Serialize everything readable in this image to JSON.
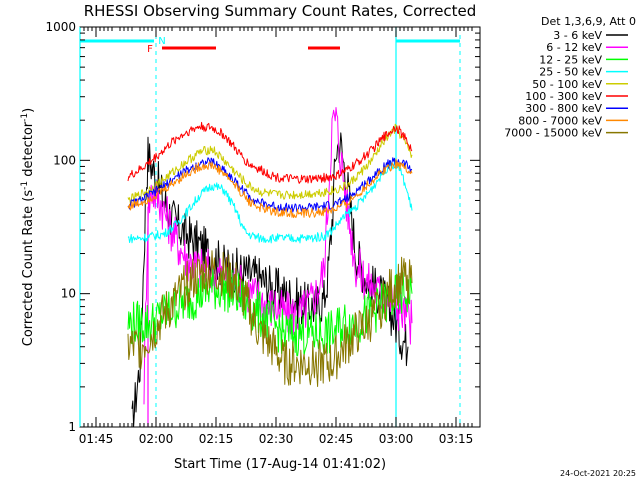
{
  "chart_data": {
    "type": "line",
    "title": "RHESSI Observing Summary Count Rates, Corrected",
    "xlabel": "Start Time (17-Aug-14 01:41:02)",
    "ylabel_main": "Corrected Count Rate (s",
    "ylabel_sup1": "-1",
    "ylabel_mid": " detector",
    "ylabel_sup2": "-1",
    "ylabel_end": ")",
    "yscale": "log",
    "ylim": [
      1,
      1000
    ],
    "xlim_minutes": [
      101,
      201
    ],
    "x_ticks": [
      {
        "m": 105,
        "label": "01:45"
      },
      {
        "m": 120,
        "label": "02:00"
      },
      {
        "m": 135,
        "label": "02:15"
      },
      {
        "m": 150,
        "label": "02:30"
      },
      {
        "m": 165,
        "label": "02:45"
      },
      {
        "m": 180,
        "label": "03:00"
      },
      {
        "m": 195,
        "label": "03:15"
      }
    ],
    "y_ticks": [
      {
        "v": 1,
        "label": "1"
      },
      {
        "v": 10,
        "label": "10"
      },
      {
        "v": 100,
        "label": "100"
      },
      {
        "v": 1000,
        "label": "1000"
      }
    ],
    "legend_header": "Det 1,3,6,9, Att 0",
    "legend_position": "top-right outside",
    "series": [
      {
        "name": "3 - 6 keV",
        "color": "#000000",
        "x": [
          114,
          116,
          117,
          117.5,
          118,
          119,
          120,
          121,
          123,
          125,
          128,
          131,
          134,
          137,
          140,
          143,
          146,
          149,
          152,
          155,
          158,
          160,
          162,
          163,
          164,
          165,
          166,
          168,
          170,
          173,
          176,
          178,
          179,
          180,
          181,
          183
        ],
        "y": [
          1,
          3,
          20,
          60,
          110,
          90,
          75,
          60,
          42,
          33,
          27,
          23,
          19,
          16,
          15,
          14,
          13,
          11,
          10,
          9,
          8,
          8,
          9,
          14,
          35,
          120,
          140,
          60,
          20,
          12,
          10,
          8,
          7,
          6,
          5,
          4
        ]
      },
      {
        "name": "6 - 12 keV",
        "color": "#ff00ff",
        "x": [
          117,
          118,
          119,
          120,
          121,
          122,
          124,
          126,
          128,
          130,
          132,
          134,
          136,
          138,
          140,
          142,
          144,
          146,
          148,
          150,
          152,
          154,
          156,
          158,
          160,
          162,
          163,
          164,
          165,
          166,
          168,
          170,
          173,
          176,
          179,
          182,
          184
        ],
        "y": [
          2,
          45,
          60,
          55,
          50,
          42,
          30,
          22,
          18,
          16,
          15,
          15,
          14,
          13,
          12,
          11,
          10,
          9,
          8,
          8,
          7,
          7,
          7,
          8,
          10,
          15,
          50,
          180,
          210,
          120,
          40,
          16,
          12,
          10,
          9,
          7,
          6
        ]
      },
      {
        "name": "12 - 25 keV",
        "color": "#00ff00",
        "x": [
          113,
          116,
          119,
          122,
          125,
          128,
          131,
          134,
          137,
          140,
          143,
          146,
          149,
          152,
          155,
          158,
          161,
          164,
          167,
          170,
          173,
          176,
          179,
          182,
          184
        ],
        "y": [
          6,
          6,
          6,
          7,
          8,
          9,
          10,
          11,
          11,
          10,
          8,
          7,
          6,
          5,
          5,
          5,
          5,
          5,
          6,
          6,
          7,
          8,
          9,
          10,
          10
        ]
      },
      {
        "name": "25 - 50 keV",
        "color": "#00ffff",
        "x": [
          113,
          116,
          119,
          122,
          125,
          128,
          131,
          134,
          137,
          140,
          142,
          143,
          146,
          150,
          154,
          158,
          162,
          164,
          166,
          168,
          170,
          172,
          174,
          176,
          178,
          180,
          181,
          182,
          183,
          184
        ],
        "y": [
          26,
          26,
          27,
          28,
          33,
          42,
          55,
          65,
          60,
          42,
          30,
          28,
          26,
          26,
          26,
          26,
          27,
          30,
          35,
          40,
          45,
          52,
          62,
          75,
          90,
          95,
          85,
          70,
          55,
          42
        ]
      },
      {
        "name": "50 - 100 keV",
        "color": "#cccc00",
        "x": [
          113,
          116,
          119,
          122,
          125,
          128,
          131,
          134,
          137,
          140,
          143,
          146,
          150,
          154,
          158,
          162,
          165,
          168,
          171,
          174,
          177,
          180,
          182,
          184
        ],
        "y": [
          50,
          55,
          62,
          72,
          85,
          100,
          115,
          122,
          100,
          80,
          65,
          58,
          55,
          55,
          56,
          58,
          60,
          65,
          80,
          100,
          140,
          175,
          140,
          110
        ]
      },
      {
        "name": "100 - 300 keV",
        "color": "#ff0000",
        "x": [
          113,
          116,
          119,
          122,
          125,
          128,
          131,
          134,
          137,
          140,
          143,
          146,
          150,
          154,
          158,
          162,
          165,
          168,
          171,
          174,
          177,
          180,
          182,
          184
        ],
        "y": [
          75,
          85,
          100,
          120,
          145,
          165,
          180,
          175,
          155,
          120,
          95,
          85,
          75,
          72,
          72,
          74,
          76,
          85,
          100,
          120,
          150,
          180,
          150,
          120
        ]
      },
      {
        "name": "300 - 800 keV",
        "color": "#0000ff",
        "x": [
          113,
          116,
          119,
          122,
          125,
          128,
          131,
          134,
          137,
          140,
          143,
          146,
          150,
          154,
          158,
          162,
          165,
          168,
          171,
          174,
          177,
          180,
          182,
          184
        ],
        "y": [
          46,
          50,
          56,
          64,
          75,
          85,
          95,
          98,
          85,
          68,
          55,
          48,
          45,
          44,
          44,
          45,
          47,
          52,
          62,
          75,
          90,
          100,
          95,
          85
        ]
      },
      {
        "name": "800 - 7000 keV",
        "color": "#ff8800",
        "x": [
          113,
          116,
          119,
          122,
          125,
          128,
          131,
          134,
          137,
          140,
          143,
          146,
          150,
          154,
          158,
          162,
          165,
          168,
          171,
          174,
          177,
          180,
          182,
          184
        ],
        "y": [
          45,
          48,
          53,
          60,
          70,
          80,
          90,
          92,
          80,
          64,
          50,
          44,
          41,
          40,
          40,
          41,
          43,
          48,
          58,
          70,
          85,
          95,
          90,
          80
        ]
      },
      {
        "name": "7000 - 15000 keV",
        "color": "#887700",
        "x": [
          113,
          116,
          119,
          122,
          125,
          128,
          131,
          134,
          137,
          140,
          143,
          146,
          149,
          152,
          155,
          158,
          161,
          164,
          167,
          170,
          173,
          176,
          179,
          182,
          184
        ],
        "y": [
          4,
          4,
          5,
          7,
          9,
          12,
          14,
          15,
          14,
          12,
          8,
          5,
          4,
          3,
          3,
          3,
          3,
          3,
          4,
          5,
          6,
          8,
          11,
          13,
          12
        ]
      }
    ],
    "annotations": {
      "flag_letters": [
        {
          "text": "F",
          "m": 118.5,
          "color": "#ff0000"
        },
        {
          "text": "N",
          "m": 121.5,
          "color": "#00ffff"
        }
      ],
      "red_bars": [
        [
          121.5,
          135
        ],
        [
          158,
          166
        ]
      ],
      "cyan_bars": [
        [
          101,
          119.5
        ],
        [
          180,
          196
        ]
      ],
      "cyan_vlines_solid": [
        101,
        180
      ],
      "cyan_vlines_dashed": [
        120,
        196
      ],
      "magenta_vline": 118
    }
  },
  "footer": {
    "timestamp": "24-Oct-2021 20:25"
  }
}
